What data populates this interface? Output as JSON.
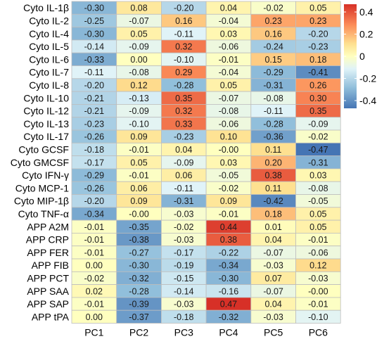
{
  "chart_data": {
    "type": "heatmap",
    "title": "",
    "xlabel": "",
    "ylabel": "",
    "columns": [
      "PC1",
      "PC2",
      "PC3",
      "PC4",
      "PC5",
      "PC6"
    ],
    "rows": [
      "Cyto IL-1β",
      "Cyto IL-2",
      "Cyto IL-4",
      "Cyto IL-5",
      "Cyto IL-6",
      "Cyto IL-7",
      "Cyto IL-8",
      "Cyto IL-10",
      "Cyto IL-12",
      "Cyto IL-13",
      "Cyto IL-17",
      "Cyto GCSF",
      "Cyto GMCSF",
      "Cyto IFN-γ",
      "Cyto MCP-1",
      "Cyto MIP-1β",
      "Cyto TNF-α",
      "APP A2M",
      "APP CRP",
      "APP FER",
      "APP FIB",
      "APP PCT",
      "APP SAA",
      "APP SAP",
      "APP tPA"
    ],
    "values": [
      [
        "-0.30",
        "0.08",
        "-0.20",
        "0.04",
        "-0.02",
        "0.05"
      ],
      [
        "-0.25",
        "-0.07",
        "0.16",
        "-0.04",
        "0.23",
        "0.23"
      ],
      [
        "-0.30",
        "0.05",
        "-0.11",
        "0.03",
        "0.16",
        "-0.20"
      ],
      [
        "-0.14",
        "-0.09",
        "0.32",
        "-0.06",
        "-0.24",
        "-0.23"
      ],
      [
        "-0.33",
        "0.00",
        "-0.10",
        "-0.01",
        "0.15",
        "0.18"
      ],
      [
        "-0.11",
        "-0.08",
        "0.29",
        "-0.04",
        "-0.29",
        "-0.41"
      ],
      [
        "-0.20",
        "0.12",
        "-0.28",
        "0.05",
        "-0.31",
        "0.26"
      ],
      [
        "-0.21",
        "-0.13",
        "0.35",
        "-0.07",
        "-0.08",
        "0.30"
      ],
      [
        "-0.21",
        "-0.09",
        "0.32",
        "-0.08",
        "-0.11",
        "0.35"
      ],
      [
        "-0.23",
        "-0.10",
        "0.33",
        "-0.06",
        "-0.28",
        "-0.09"
      ],
      [
        "-0.26",
        "0.09",
        "-0.23",
        "0.10",
        "-0.36",
        "-0.02"
      ],
      [
        "-0.18",
        "-0.01",
        "0.04",
        "-0.00",
        "0.11",
        "-0.47"
      ],
      [
        "-0.17",
        "0.05",
        "-0.09",
        "0.03",
        "0.20",
        "-0.31"
      ],
      [
        "-0.29",
        "-0.01",
        "0.06",
        "-0.05",
        "0.38",
        "0.03"
      ],
      [
        "-0.26",
        "0.06",
        "-0.11",
        "-0.02",
        "0.11",
        "-0.08"
      ],
      [
        "-0.20",
        "0.09",
        "-0.31",
        "0.09",
        "-0.42",
        "-0.05"
      ],
      [
        "-0.34",
        "-0.00",
        "-0.03",
        "-0.01",
        "0.18",
        "0.05"
      ],
      [
        "-0.01",
        "-0.35",
        "-0.02",
        "0.44",
        "0.01",
        "0.05"
      ],
      [
        "-0.01",
        "-0.38",
        "-0.03",
        "0.38",
        "0.04",
        "-0.01"
      ],
      [
        "-0.01",
        "-0.27",
        "-0.17",
        "-0.22",
        "-0.07",
        "-0.06"
      ],
      [
        "0.00",
        "-0.30",
        "-0.19",
        "-0.34",
        "-0.03",
        "0.12"
      ],
      [
        "-0.02",
        "-0.32",
        "-0.15",
        "-0.30",
        "0.07",
        "-0.03"
      ],
      [
        "0.02",
        "-0.28",
        "-0.14",
        "-0.16",
        "-0.07",
        "-0.00"
      ],
      [
        "-0.01",
        "-0.39",
        "-0.03",
        "0.47",
        "0.04",
        "-0.01"
      ],
      [
        "0.00",
        "-0.37",
        "-0.18",
        "-0.32",
        "-0.03",
        "-0.10"
      ]
    ],
    "legend": {
      "placement": "right",
      "range": [
        -0.47,
        0.47
      ],
      "ticks": [
        "0.4",
        "0.2",
        "0",
        "-0.2",
        "-0.4"
      ],
      "tick_values": [
        0.4,
        0.2,
        0,
        -0.2,
        -0.4
      ]
    },
    "colors": {
      "low": "#4575b4",
      "mid_low": "#91bfdb",
      "mid_low2": "#e0f3f8",
      "mid": "#ffffbf",
      "mid_high2": "#fee090",
      "mid_high": "#fc8d59",
      "high": "#d73027",
      "grid": "#bdbdbd"
    }
  }
}
